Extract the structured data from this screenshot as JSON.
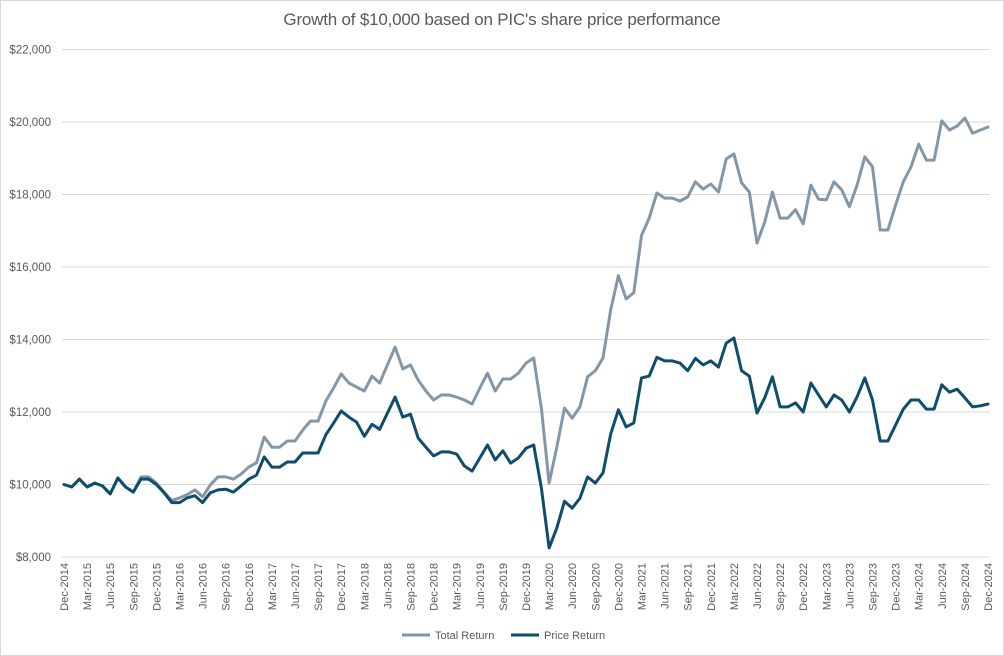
{
  "chart_data": {
    "type": "line",
    "title": "Growth of $10,000 based on PIC's share price performance",
    "xlabel": "",
    "ylabel": "",
    "ylim": [
      8000,
      22000
    ],
    "y_ticks": [
      8000,
      10000,
      12000,
      14000,
      16000,
      18000,
      20000,
      22000
    ],
    "y_tick_labels": [
      "$8,000",
      "$10,000",
      "$12,000",
      "$14,000",
      "$16,000",
      "$18,000",
      "$20,000",
      "$22,000"
    ],
    "grid": "horizontal",
    "x_frequency": "monthly",
    "x_start": "Dec-2014",
    "x_end": "Dec-2024",
    "x_tick_labels": [
      "Dec-2014",
      "Mar-2015",
      "Jun-2015",
      "Sep-2015",
      "Dec-2015",
      "Mar-2016",
      "Jun-2016",
      "Sep-2016",
      "Dec-2016",
      "Mar-2017",
      "Jun-2017",
      "Sep-2017",
      "Dec-2017",
      "Mar-2018",
      "Jun-2018",
      "Sep-2018",
      "Dec-2018",
      "Mar-2019",
      "Jun-2019",
      "Sep-2019",
      "Dec-2019",
      "Mar-2020",
      "Jun-2020",
      "Sep-2020",
      "Dec-2020",
      "Mar-2021",
      "Jun-2021",
      "Sep-2021",
      "Dec-2021",
      "Mar-2022",
      "Jun-2022",
      "Sep-2022",
      "Dec-2022",
      "Mar-2023",
      "Jun-2023",
      "Sep-2023",
      "Dec-2023",
      "Mar-2024",
      "Jun-2024",
      "Sep-2024",
      "Dec-2024"
    ],
    "legend_position": "bottom",
    "series": [
      {
        "name": "Total Return",
        "color": "#8497a9",
        "values": [
          10000,
          9930,
          10150,
          9930,
          10040,
          9960,
          9740,
          10180,
          9930,
          9790,
          10210,
          10210,
          10040,
          9790,
          9560,
          9630,
          9720,
          9850,
          9660,
          9990,
          10210,
          10210,
          10150,
          10290,
          10480,
          10600,
          11310,
          11030,
          11030,
          11200,
          11200,
          11500,
          11750,
          11750,
          12300,
          12660,
          13050,
          12800,
          12690,
          12580,
          12990,
          12800,
          13300,
          13790,
          13190,
          13300,
          12880,
          12580,
          12330,
          12470,
          12470,
          12410,
          12330,
          12220,
          12660,
          13070,
          12580,
          12910,
          12910,
          13070,
          13350,
          13490,
          12100,
          10040,
          11030,
          12110,
          11830,
          12140,
          12970,
          13140,
          13490,
          14820,
          15760,
          15120,
          15290,
          16870,
          17350,
          18040,
          17900,
          17900,
          17820,
          17930,
          18350,
          18150,
          18290,
          18070,
          18980,
          19120,
          18320,
          18070,
          16660,
          17240,
          18070,
          17350,
          17350,
          17580,
          17190,
          18260,
          17870,
          17850,
          18350,
          18130,
          17660,
          18260,
          19040,
          18760,
          17020,
          17020,
          17710,
          18350,
          18760,
          19390,
          18950,
          18950,
          20030,
          19780,
          19890,
          20110,
          19690,
          19780,
          19860
        ]
      },
      {
        "name": "Price Return",
        "color": "#0e4d6b",
        "values": [
          10000,
          9930,
          10150,
          9930,
          10040,
          9960,
          9740,
          10180,
          9930,
          9790,
          10150,
          10150,
          10000,
          9770,
          9500,
          9500,
          9630,
          9690,
          9500,
          9770,
          9850,
          9870,
          9790,
          9960,
          10150,
          10260,
          10760,
          10480,
          10480,
          10620,
          10620,
          10870,
          10870,
          10870,
          11370,
          11690,
          12030,
          11860,
          11720,
          11330,
          11660,
          11520,
          11970,
          12410,
          11860,
          11940,
          11280,
          11030,
          10790,
          10900,
          10900,
          10840,
          10510,
          10370,
          10730,
          11090,
          10680,
          10930,
          10590,
          10730,
          11000,
          11090,
          9900,
          8250,
          8800,
          9540,
          9350,
          9620,
          10210,
          10040,
          10320,
          11390,
          12060,
          11590,
          11700,
          12940,
          12990,
          13510,
          13410,
          13410,
          13350,
          13140,
          13480,
          13300,
          13410,
          13240,
          13900,
          14040,
          13140,
          12990,
          11970,
          12390,
          12970,
          12140,
          12140,
          12250,
          12000,
          12800,
          12470,
          12140,
          12470,
          12330,
          12000,
          12420,
          12940,
          12330,
          11200,
          11200,
          11640,
          12080,
          12330,
          12330,
          12080,
          12080,
          12750,
          12550,
          12630,
          12390,
          12140,
          12170,
          12220
        ]
      }
    ]
  }
}
